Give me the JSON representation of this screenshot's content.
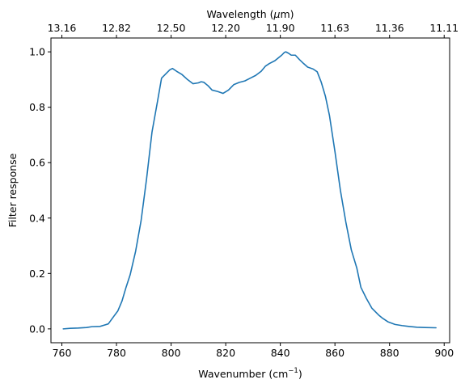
{
  "chart_data": {
    "type": "line",
    "title": "",
    "xlabel": {
      "text": "Wavenumber (cm",
      "sup": "−1",
      "close": ")"
    },
    "x2label": {
      "pre": "Wavelength (",
      "mu": "μ",
      "post": "m)"
    },
    "ylabel": "Filter response",
    "xlim": [
      756,
      902
    ],
    "ylim": [
      -0.05,
      1.05
    ],
    "xticks": [
      760,
      780,
      800,
      820,
      840,
      860,
      880,
      900
    ],
    "yticks": [
      0.0,
      0.2,
      0.4,
      0.6,
      0.8,
      1.0
    ],
    "x2ticks": [
      {
        "at": 760,
        "label": "13.16"
      },
      {
        "at": 780,
        "label": "12.82"
      },
      {
        "at": 800,
        "label": "12.50"
      },
      {
        "at": 820,
        "label": "12.20"
      },
      {
        "at": 840,
        "label": "11.90"
      },
      {
        "at": 860,
        "label": "11.63"
      },
      {
        "at": 880,
        "label": "11.36"
      },
      {
        "at": 900,
        "label": "11.11"
      }
    ],
    "line_color": "#1f77b4",
    "grid": false,
    "series": [
      {
        "name": "",
        "points": [
          [
            760.5,
            0.0
          ],
          [
            763,
            0.002
          ],
          [
            766,
            0.003
          ],
          [
            769,
            0.005
          ],
          [
            771,
            0.008
          ],
          [
            774,
            0.009
          ],
          [
            777,
            0.018
          ],
          [
            779,
            0.045
          ],
          [
            780.5,
            0.065
          ],
          [
            782,
            0.1
          ],
          [
            783.5,
            0.15
          ],
          [
            785,
            0.195
          ],
          [
            787,
            0.28
          ],
          [
            789,
            0.39
          ],
          [
            791,
            0.54
          ],
          [
            793,
            0.71
          ],
          [
            795,
            0.82
          ],
          [
            796.5,
            0.905
          ],
          [
            798,
            0.92
          ],
          [
            799.5,
            0.935
          ],
          [
            800.5,
            0.94
          ],
          [
            802,
            0.93
          ],
          [
            804,
            0.918
          ],
          [
            806,
            0.9
          ],
          [
            808,
            0.885
          ],
          [
            810,
            0.888
          ],
          [
            811,
            0.892
          ],
          [
            812,
            0.89
          ],
          [
            813.5,
            0.878
          ],
          [
            815,
            0.862
          ],
          [
            817,
            0.857
          ],
          [
            819,
            0.85
          ],
          [
            821,
            0.862
          ],
          [
            823,
            0.882
          ],
          [
            825,
            0.89
          ],
          [
            827,
            0.895
          ],
          [
            829,
            0.905
          ],
          [
            831,
            0.915
          ],
          [
            833,
            0.93
          ],
          [
            834.5,
            0.948
          ],
          [
            836,
            0.958
          ],
          [
            838,
            0.968
          ],
          [
            839.5,
            0.98
          ],
          [
            840.5,
            0.988
          ],
          [
            841.5,
            0.998
          ],
          [
            842,
            1.0
          ],
          [
            843,
            0.995
          ],
          [
            844,
            0.988
          ],
          [
            845.5,
            0.988
          ],
          [
            847,
            0.972
          ],
          [
            848.5,
            0.958
          ],
          [
            850,
            0.945
          ],
          [
            852,
            0.938
          ],
          [
            853.5,
            0.928
          ],
          [
            855,
            0.89
          ],
          [
            856.5,
            0.84
          ],
          [
            858,
            0.77
          ],
          [
            860,
            0.64
          ],
          [
            862,
            0.5
          ],
          [
            864,
            0.385
          ],
          [
            866,
            0.285
          ],
          [
            868,
            0.22
          ],
          [
            869.5,
            0.15
          ],
          [
            871.5,
            0.11
          ],
          [
            873.5,
            0.075
          ],
          [
            876,
            0.05
          ],
          [
            877.5,
            0.038
          ],
          [
            879.5,
            0.025
          ],
          [
            882,
            0.016
          ],
          [
            884.5,
            0.012
          ],
          [
            887,
            0.009
          ],
          [
            890,
            0.006
          ],
          [
            893,
            0.005
          ],
          [
            897,
            0.004
          ]
        ]
      }
    ]
  }
}
